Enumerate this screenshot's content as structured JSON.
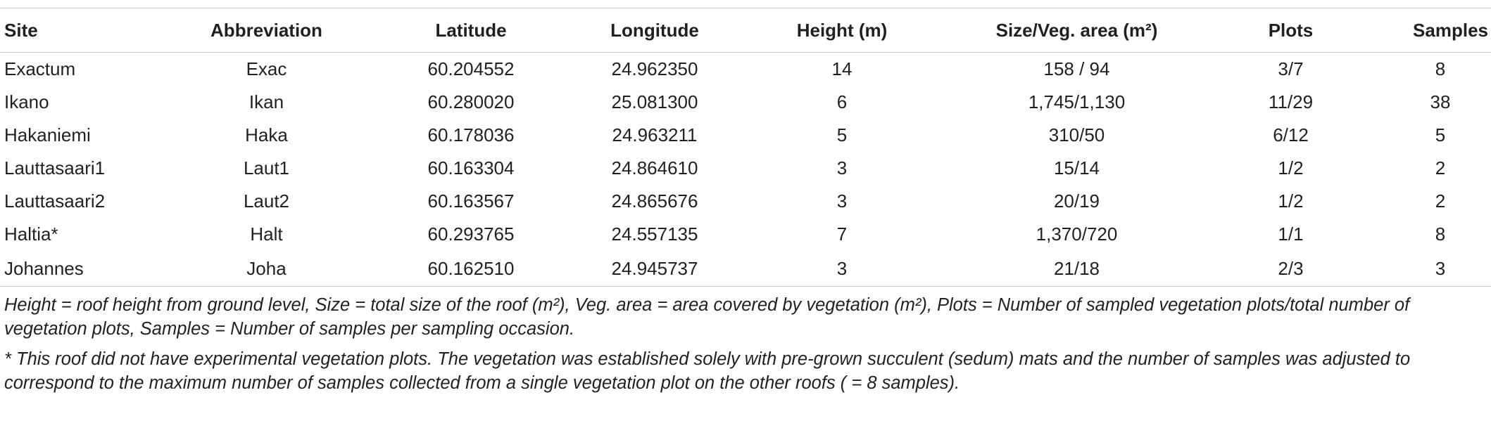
{
  "table": {
    "columns": [
      "Site",
      "Abbreviation",
      "Latitude",
      "Longitude",
      "Height (m)",
      "Size/Veg. area (m²)",
      "Plots",
      "Samples"
    ],
    "rows": [
      [
        "Exactum",
        "Exac",
        "60.204552",
        "24.962350",
        "14",
        "158 / 94",
        "3/7",
        "8"
      ],
      [
        "Ikano",
        "Ikan",
        "60.280020",
        "25.081300",
        "6",
        "1,745/1,130",
        "11/29",
        "38"
      ],
      [
        "Hakaniemi",
        "Haka",
        "60.178036",
        "24.963211",
        "5",
        "310/50",
        "6/12",
        "5"
      ],
      [
        "Lauttasaari1",
        "Laut1",
        "60.163304",
        "24.864610",
        "3",
        "15/14",
        "1/2",
        "2"
      ],
      [
        "Lauttasaari2",
        "Laut2",
        "60.163567",
        "24.865676",
        "3",
        "20/19",
        "1/2",
        "2"
      ],
      [
        "Haltia*",
        "Halt",
        "60.293765",
        "24.557135",
        "7",
        "1,370/720",
        "1/1",
        "8"
      ],
      [
        "Johannes",
        "Joha",
        "60.162510",
        "24.945737",
        "3",
        "21/18",
        "2/3",
        "3"
      ]
    ]
  },
  "footnotes": [
    "Height = roof height from ground level, Size = total size of the roof (m²), Veg. area = area covered by vegetation (m²), Plots = Number of sampled vegetation plots/total number of vegetation plots, Samples = Number of samples per sampling occasion.",
    "* This roof did not have experimental vegetation plots. The vegetation was established solely with pre-grown succulent (sedum) mats and the number of samples was adjusted to correspond to the maximum number of samples collected from a single vegetation plot on the other roofs ( = 8 samples)."
  ]
}
